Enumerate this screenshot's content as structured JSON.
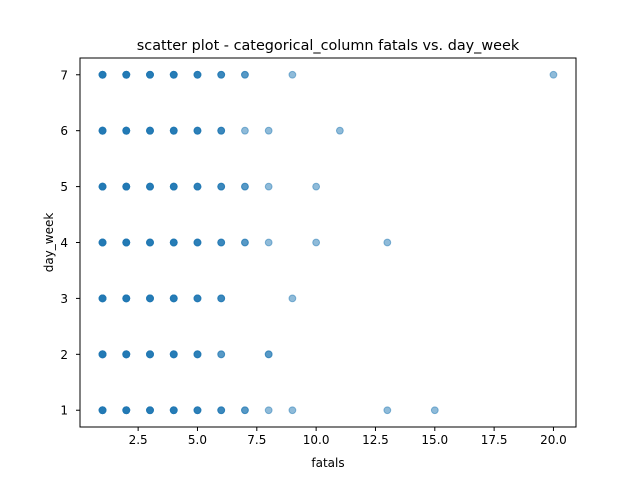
{
  "chart_data": {
    "type": "scatter",
    "title": "scatter plot - categorical_column fatals vs. day_week",
    "xlabel": "fatals",
    "ylabel": "day_week",
    "xlim": [
      0.05,
      20.95
    ],
    "ylim": [
      0.7,
      7.3
    ],
    "xticks": [
      2.5,
      5.0,
      7.5,
      10.0,
      12.5,
      15.0,
      17.5,
      20.0
    ],
    "xtick_labels": [
      "2.5",
      "5.0",
      "7.5",
      "10.0",
      "12.5",
      "15.0",
      "17.5",
      "20.0"
    ],
    "yticks": [
      1,
      2,
      3,
      4,
      5,
      6,
      7
    ],
    "ytick_labels": [
      "1",
      "2",
      "3",
      "4",
      "5",
      "6",
      "7"
    ],
    "grid": false,
    "marker_color": "#1f77b4",
    "marker_alpha": 0.5,
    "points": [
      {
        "x": 1,
        "y": 7,
        "n": 6
      },
      {
        "x": 2,
        "y": 7,
        "n": 6
      },
      {
        "x": 3,
        "y": 7,
        "n": 5
      },
      {
        "x": 4,
        "y": 7,
        "n": 5
      },
      {
        "x": 5,
        "y": 7,
        "n": 4
      },
      {
        "x": 6,
        "y": 7,
        "n": 3
      },
      {
        "x": 7,
        "y": 7,
        "n": 2
      },
      {
        "x": 9,
        "y": 7,
        "n": 1
      },
      {
        "x": 20,
        "y": 7,
        "n": 1
      },
      {
        "x": 1,
        "y": 6,
        "n": 6
      },
      {
        "x": 2,
        "y": 6,
        "n": 6
      },
      {
        "x": 3,
        "y": 6,
        "n": 5
      },
      {
        "x": 4,
        "y": 6,
        "n": 5
      },
      {
        "x": 5,
        "y": 6,
        "n": 4
      },
      {
        "x": 6,
        "y": 6,
        "n": 3
      },
      {
        "x": 7,
        "y": 6,
        "n": 1
      },
      {
        "x": 8,
        "y": 6,
        "n": 1
      },
      {
        "x": 11,
        "y": 6,
        "n": 1
      },
      {
        "x": 1,
        "y": 5,
        "n": 6
      },
      {
        "x": 2,
        "y": 5,
        "n": 6
      },
      {
        "x": 3,
        "y": 5,
        "n": 5
      },
      {
        "x": 4,
        "y": 5,
        "n": 5
      },
      {
        "x": 5,
        "y": 5,
        "n": 4
      },
      {
        "x": 6,
        "y": 5,
        "n": 3
      },
      {
        "x": 7,
        "y": 5,
        "n": 2
      },
      {
        "x": 8,
        "y": 5,
        "n": 1
      },
      {
        "x": 10,
        "y": 5,
        "n": 1
      },
      {
        "x": 1,
        "y": 4,
        "n": 6
      },
      {
        "x": 2,
        "y": 4,
        "n": 6
      },
      {
        "x": 3,
        "y": 4,
        "n": 5
      },
      {
        "x": 4,
        "y": 4,
        "n": 5
      },
      {
        "x": 5,
        "y": 4,
        "n": 4
      },
      {
        "x": 6,
        "y": 4,
        "n": 3
      },
      {
        "x": 7,
        "y": 4,
        "n": 2
      },
      {
        "x": 8,
        "y": 4,
        "n": 1
      },
      {
        "x": 10,
        "y": 4,
        "n": 1
      },
      {
        "x": 13,
        "y": 4,
        "n": 1
      },
      {
        "x": 1,
        "y": 3,
        "n": 6
      },
      {
        "x": 2,
        "y": 3,
        "n": 6
      },
      {
        "x": 3,
        "y": 3,
        "n": 5
      },
      {
        "x": 4,
        "y": 3,
        "n": 5
      },
      {
        "x": 5,
        "y": 3,
        "n": 4
      },
      {
        "x": 6,
        "y": 3,
        "n": 3
      },
      {
        "x": 9,
        "y": 3,
        "n": 1
      },
      {
        "x": 1,
        "y": 2,
        "n": 6
      },
      {
        "x": 2,
        "y": 2,
        "n": 6
      },
      {
        "x": 3,
        "y": 2,
        "n": 5
      },
      {
        "x": 4,
        "y": 2,
        "n": 5
      },
      {
        "x": 5,
        "y": 2,
        "n": 4
      },
      {
        "x": 6,
        "y": 2,
        "n": 2
      },
      {
        "x": 8,
        "y": 2,
        "n": 2
      },
      {
        "x": 1,
        "y": 1,
        "n": 6
      },
      {
        "x": 2,
        "y": 1,
        "n": 6
      },
      {
        "x": 3,
        "y": 1,
        "n": 5
      },
      {
        "x": 4,
        "y": 1,
        "n": 5
      },
      {
        "x": 5,
        "y": 1,
        "n": 4
      },
      {
        "x": 6,
        "y": 1,
        "n": 3
      },
      {
        "x": 7,
        "y": 1,
        "n": 2
      },
      {
        "x": 8,
        "y": 1,
        "n": 1
      },
      {
        "x": 9,
        "y": 1,
        "n": 1
      },
      {
        "x": 13,
        "y": 1,
        "n": 1
      },
      {
        "x": 15,
        "y": 1,
        "n": 1
      }
    ]
  }
}
